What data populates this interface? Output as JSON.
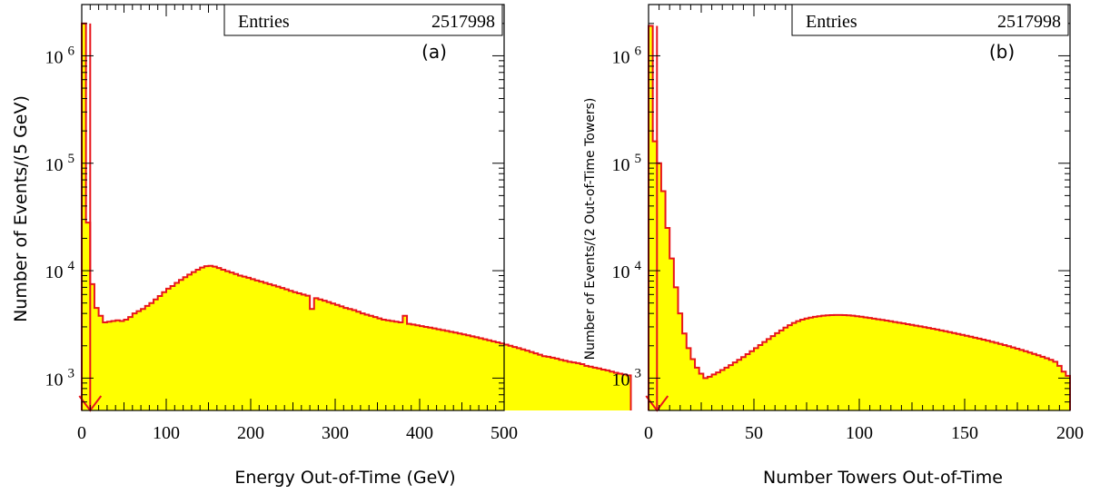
{
  "chart_data": [
    {
      "type": "area",
      "panel_label": "(a)",
      "stats_label": "Entries",
      "stats_value": "2517998",
      "xlabel": "Energy Out-of-Time (GeV)",
      "ylabel": "Number of Events/(5 GeV)",
      "xlim": [
        0,
        500
      ],
      "ylim": [
        500,
        3000000
      ],
      "yscale": "log",
      "x_ticks": [
        "0",
        "100",
        "200",
        "300",
        "400",
        "500"
      ],
      "y_ticks": [
        "10^3",
        "10^4",
        "10^5",
        "10^6"
      ],
      "bin_width": 5,
      "cut_value": 10,
      "fill_color": "#ffff00",
      "line_color": "#e8141c",
      "values": [
        2000000,
        28000,
        7500,
        4500,
        3800,
        3300,
        3350,
        3400,
        3450,
        3400,
        3500,
        3700,
        4000,
        4200,
        4400,
        4700,
        5000,
        5400,
        5800,
        6300,
        6800,
        7200,
        7700,
        8200,
        8700,
        9200,
        9700,
        10200,
        10700,
        11000,
        11100,
        10900,
        10600,
        10200,
        9900,
        9600,
        9300,
        9000,
        8800,
        8600,
        8350,
        8100,
        7900,
        7700,
        7500,
        7300,
        7100,
        6900,
        6700,
        6500,
        6300,
        6150,
        6000,
        5850,
        5700,
        5550,
        5400,
        5250,
        5100,
        4950,
        4800,
        4650,
        4500,
        4400,
        4300,
        4150,
        4000,
        3900,
        3800,
        3700,
        3600,
        3500,
        3450,
        3400,
        3350,
        3300,
        3250,
        3200,
        3150,
        3100,
        3050,
        3000,
        2950,
        2900,
        2850,
        2800,
        2750,
        2700,
        2650,
        2600,
        2550,
        2500,
        2450,
        2400,
        2350,
        2300,
        2250,
        2200,
        2150,
        2100,
        2050,
        2000,
        1950,
        1900,
        1850,
        1800,
        1750,
        1700,
        1650,
        1600,
        1580,
        1550,
        1520,
        1480,
        1450,
        1420,
        1400,
        1380,
        1350,
        1300,
        1280,
        1250,
        1230,
        1200,
        1180,
        1150,
        1120,
        1100,
        1080,
        1060
      ],
      "spikes": [
        {
          "x": 270,
          "value": 4400
        },
        {
          "x": 380,
          "value": 3800
        }
      ]
    },
    {
      "type": "area",
      "panel_label": "(b)",
      "stats_label": "Entries",
      "stats_value": "2517998",
      "xlabel": "Number Towers Out-of-Time",
      "ylabel": "Number of Events/(2 Out-of-Time Towers)",
      "xlim": [
        0,
        200
      ],
      "ylim": [
        500,
        3000000
      ],
      "yscale": "log",
      "x_ticks": [
        "0",
        "50",
        "100",
        "150",
        "200"
      ],
      "y_ticks": [
        "10^3",
        "10^4",
        "10^5",
        "10^6"
      ],
      "bin_width": 2,
      "cut_value": 4,
      "fill_color": "#ffff00",
      "line_color": "#e8141c",
      "values": [
        1900000,
        160000,
        100000,
        55000,
        25000,
        13000,
        7000,
        4000,
        2600,
        1900,
        1500,
        1250,
        1100,
        1000,
        1030,
        1080,
        1130,
        1190,
        1250,
        1320,
        1400,
        1480,
        1570,
        1670,
        1780,
        1900,
        2030,
        2170,
        2310,
        2460,
        2620,
        2780,
        2950,
        3110,
        3260,
        3390,
        3500,
        3590,
        3660,
        3720,
        3770,
        3810,
        3840,
        3860,
        3870,
        3870,
        3860,
        3840,
        3810,
        3770,
        3730,
        3680,
        3630,
        3580,
        3530,
        3480,
        3430,
        3380,
        3330,
        3280,
        3230,
        3180,
        3130,
        3080,
        3030,
        2980,
        2930,
        2880,
        2830,
        2780,
        2730,
        2680,
        2630,
        2580,
        2530,
        2480,
        2430,
        2380,
        2330,
        2280,
        2230,
        2180,
        2130,
        2080,
        2030,
        1980,
        1930,
        1880,
        1830,
        1780,
        1730,
        1680,
        1630,
        1580,
        1530,
        1480,
        1420,
        1300,
        1150,
        1050
      ]
    }
  ]
}
